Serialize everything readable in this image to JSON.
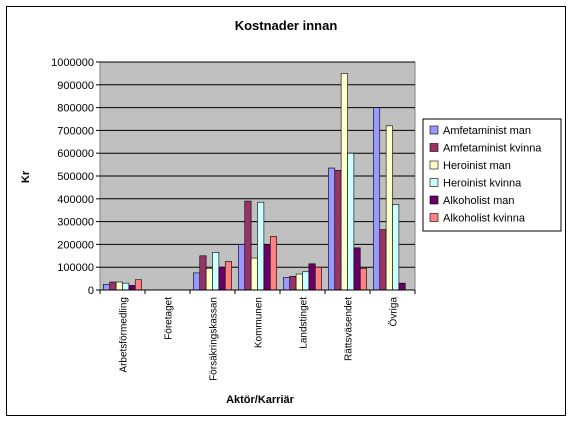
{
  "chart_data": {
    "type": "bar",
    "title": "Kostnader innan",
    "xlabel": "Aktör/Karriär",
    "ylabel": "Kr",
    "ylim": [
      0,
      1000000
    ],
    "yticks": [
      "0",
      "100000",
      "200000",
      "300000",
      "400000",
      "500000",
      "600000",
      "700000",
      "800000",
      "900000",
      "1000000"
    ],
    "grid": true,
    "legend_position": "right",
    "categories": [
      "Arbetsförmedling",
      "Företaget",
      "Försäkringskassan",
      "Kommunen",
      "Landstinget",
      "Rättsväsendet",
      "Övriga"
    ],
    "series": [
      {
        "name": "Amfetaminist man",
        "color": "#9999ff",
        "values": [
          25000,
          0,
          75000,
          200000,
          55000,
          535000,
          800000
        ]
      },
      {
        "name": "Amfetaminist kvinna",
        "color": "#993366",
        "values": [
          35000,
          0,
          150000,
          390000,
          60000,
          525000,
          265000
        ]
      },
      {
        "name": "Heroinist man",
        "color": "#ffffcc",
        "values": [
          35000,
          0,
          95000,
          140000,
          70000,
          950000,
          720000
        ]
      },
      {
        "name": "Heroinist kvinna",
        "color": "#ccffff",
        "values": [
          30000,
          0,
          165000,
          385000,
          80000,
          600000,
          375000
        ]
      },
      {
        "name": "Alkoholist man",
        "color": "#660066",
        "values": [
          20000,
          0,
          100000,
          200000,
          115000,
          185000,
          30000
        ]
      },
      {
        "name": "Alkoholist kvinna",
        "color": "#ff8080",
        "values": [
          45000,
          0,
          125000,
          235000,
          100000,
          95000,
          0
        ]
      }
    ]
  }
}
